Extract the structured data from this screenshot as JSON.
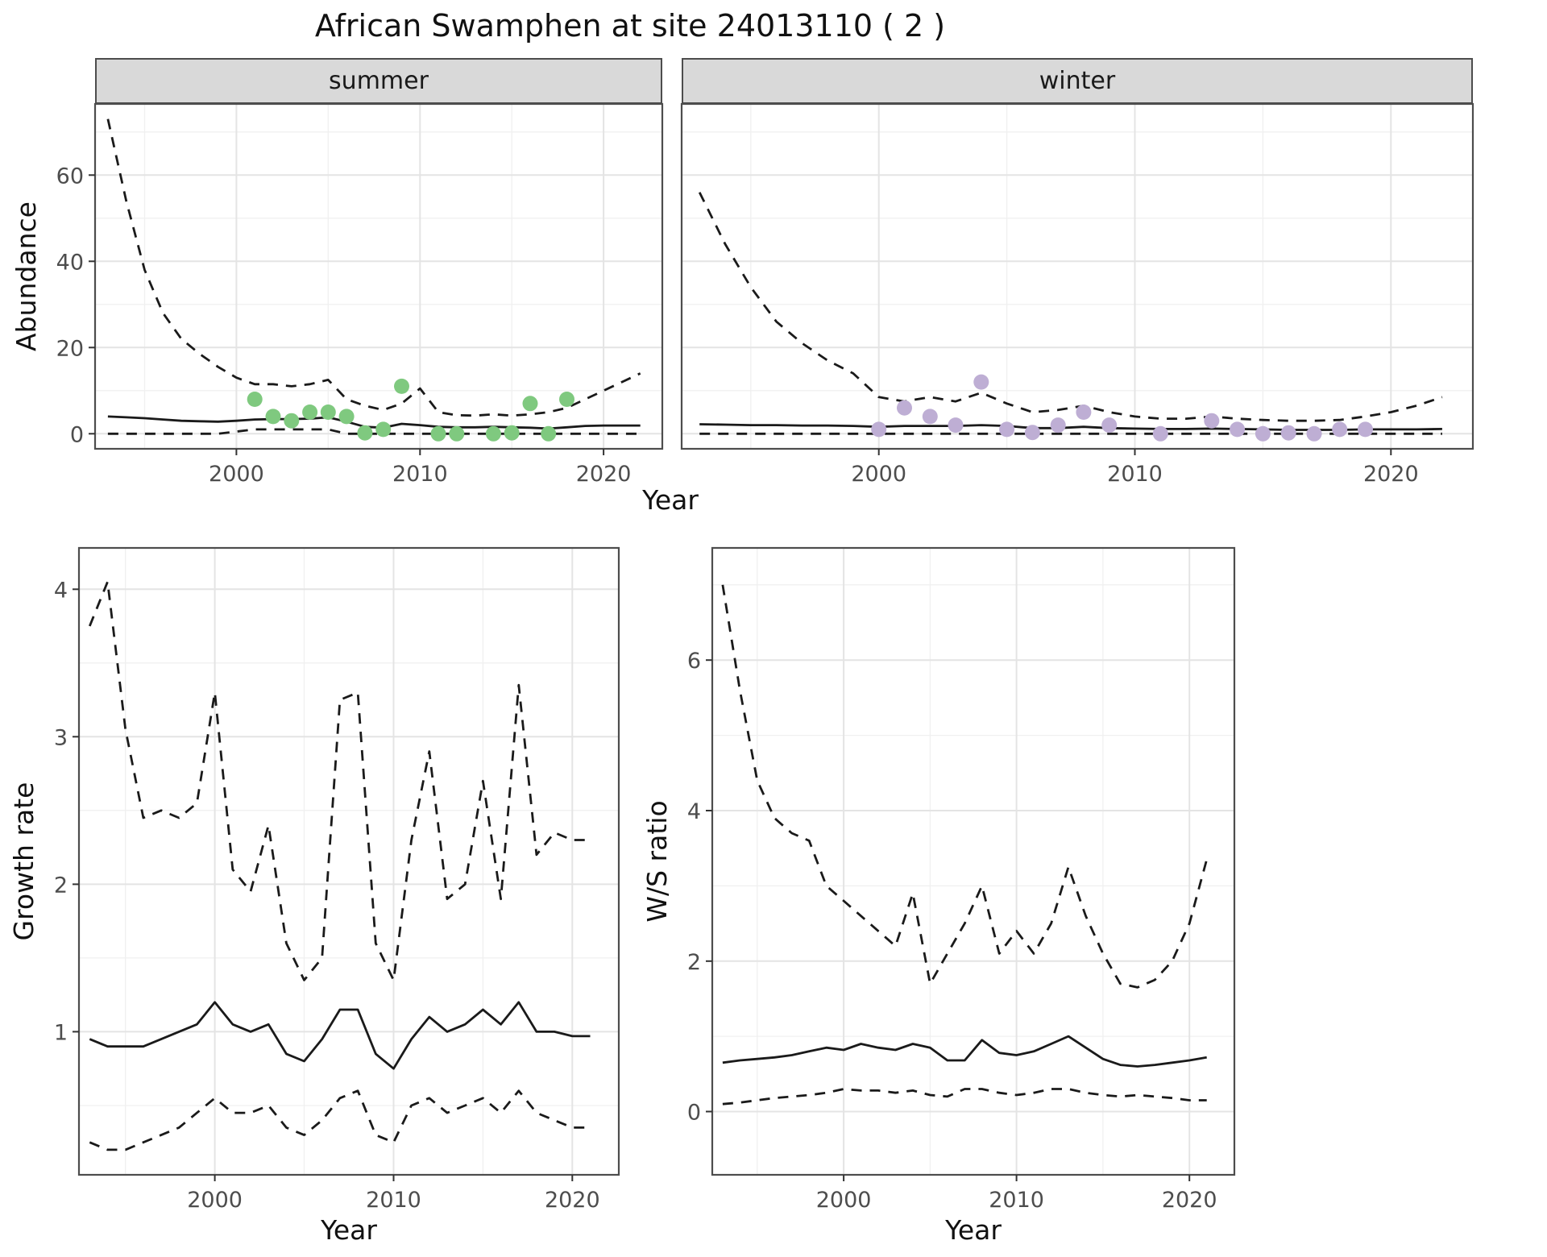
{
  "title": "African Swamphen at site 24013110 ( 2 )",
  "styles": {
    "summer_point_color": "#7FC97F",
    "winter_point_color": "#BEAED4",
    "line_color": "#1a1a1a",
    "strip_background": "#d9d9d9"
  },
  "chart_data": [
    {
      "id": "abundance_summer",
      "type": "line",
      "facet": "summer",
      "xlabel": "Year",
      "ylabel": "Abundance",
      "xlim": [
        1992.3,
        2023.2
      ],
      "ylim": [
        -3.5,
        76.5
      ],
      "xticks": [
        2000,
        2010,
        2020
      ],
      "yticks": [
        0,
        20,
        40,
        60
      ],
      "xticks_minor": [
        1995,
        2005,
        2015
      ],
      "yticks_minor": [
        10,
        30,
        50,
        70
      ],
      "years": [
        1993,
        1994,
        1995,
        1996,
        1997,
        1998,
        1999,
        2000,
        2001,
        2002,
        2003,
        2004,
        2005,
        2006,
        2007,
        2008,
        2009,
        2010,
        2011,
        2012,
        2013,
        2014,
        2015,
        2016,
        2017,
        2018,
        2019,
        2020,
        2021,
        2022
      ],
      "series": [
        {
          "name": "upper_CI",
          "style": "dashed",
          "values": [
            73,
            54,
            38,
            28,
            22,
            18.5,
            15.5,
            13,
            11.5,
            11.5,
            11,
            11.5,
            12.5,
            8,
            6.5,
            5.5,
            7,
            10.5,
            5,
            4.3,
            4.2,
            4.5,
            4.2,
            4.5,
            5,
            6,
            8,
            10,
            12,
            14
          ]
        },
        {
          "name": "median",
          "style": "solid",
          "values": [
            4,
            3.8,
            3.6,
            3.3,
            3,
            2.9,
            2.8,
            3,
            3.3,
            3.4,
            3.4,
            3.5,
            3.8,
            2.8,
            1.6,
            1.4,
            2.3,
            2,
            1.6,
            1.5,
            1.5,
            1.6,
            1.5,
            1.4,
            1.2,
            1.5,
            1.8,
            1.9,
            1.9,
            1.9
          ]
        },
        {
          "name": "lower_CI",
          "style": "dashed",
          "values": [
            0,
            0,
            0,
            0,
            0,
            0,
            0,
            0.5,
            1,
            1,
            1,
            1,
            1,
            0,
            0,
            0,
            0,
            0,
            0,
            0,
            0,
            0,
            0,
            0,
            0,
            0,
            0,
            0,
            0,
            0
          ]
        }
      ],
      "points": {
        "name": "observed_counts",
        "color": "#7FC97F",
        "x": [
          2001,
          2002,
          2003,
          2004,
          2005,
          2006,
          2007,
          2008,
          2009,
          2011,
          2012,
          2014,
          2015,
          2016,
          2017,
          2018
        ],
        "y": [
          8,
          4,
          3,
          5,
          5,
          4,
          0.2,
          1,
          11,
          0,
          0,
          0,
          0.2,
          7,
          0,
          8
        ]
      }
    },
    {
      "id": "abundance_winter",
      "type": "line",
      "facet": "winter",
      "xlabel": "Year",
      "ylabel": "Abundance",
      "xlim": [
        1992.3,
        2023.2
      ],
      "ylim": [
        -3.5,
        76.5
      ],
      "xticks": [
        2000,
        2010,
        2020
      ],
      "yticks": [
        0,
        20,
        40,
        60
      ],
      "xticks_minor": [
        1995,
        2005,
        2015
      ],
      "yticks_minor": [
        10,
        30,
        50,
        70
      ],
      "years": [
        1993,
        1994,
        1995,
        1996,
        1997,
        1998,
        1999,
        2000,
        2001,
        2002,
        2003,
        2004,
        2005,
        2006,
        2007,
        2008,
        2009,
        2010,
        2011,
        2012,
        2013,
        2014,
        2015,
        2016,
        2017,
        2018,
        2019,
        2020,
        2021,
        2022
      ],
      "series": [
        {
          "name": "upper_CI",
          "style": "dashed",
          "values": [
            56,
            44,
            34,
            26,
            21,
            17,
            14,
            8.5,
            7.5,
            8.5,
            7.5,
            9.5,
            7,
            5,
            5.5,
            6.5,
            5,
            4,
            3.5,
            3.5,
            4,
            3.5,
            3.2,
            3,
            3,
            3.2,
            4,
            5,
            6.5,
            8.5
          ]
        },
        {
          "name": "median",
          "style": "solid",
          "values": [
            2.2,
            2.1,
            2,
            2,
            1.9,
            1.9,
            1.8,
            1.6,
            1.8,
            1.8,
            1.8,
            2,
            1.8,
            1.3,
            1.3,
            1.6,
            1.3,
            1.2,
            1.1,
            1.1,
            1.2,
            1.1,
            1,
            0.9,
            0.9,
            0.9,
            1,
            1,
            1,
            1.1
          ]
        },
        {
          "name": "lower_CI",
          "style": "dashed",
          "values": [
            0,
            0,
            0,
            0,
            0,
            0,
            0,
            0,
            0,
            0,
            0,
            0,
            0,
            0,
            0,
            0,
            0,
            0,
            0,
            0,
            0,
            0,
            0,
            0,
            0,
            0,
            0,
            0,
            0,
            0
          ]
        }
      ],
      "points": {
        "name": "observed_counts",
        "color": "#BEAED4",
        "x": [
          2000,
          2001,
          2002,
          2003,
          2004,
          2005,
          2006,
          2007,
          2008,
          2009,
          2011,
          2013,
          2014,
          2015,
          2016,
          2017,
          2018,
          2019
        ],
        "y": [
          1,
          6,
          4,
          2,
          12,
          1,
          0.3,
          2,
          5,
          2,
          0,
          3,
          1,
          0,
          0.2,
          0,
          1,
          1
        ]
      }
    },
    {
      "id": "growth_rate",
      "type": "line",
      "facet": "",
      "xlabel": "Year",
      "ylabel": "Growth rate",
      "xlim": [
        1992.4,
        2022.6
      ],
      "ylim": [
        0.03,
        4.28
      ],
      "xticks": [
        2000,
        2010,
        2020
      ],
      "yticks": [
        1,
        2,
        3,
        4
      ],
      "xticks_minor": [
        1995,
        2005,
        2015
      ],
      "yticks_minor": [
        0.5,
        1.5,
        2.5,
        3.5
      ],
      "years": [
        1993,
        1994,
        1995,
        1996,
        1997,
        1998,
        1999,
        2000,
        2001,
        2002,
        2003,
        2004,
        2005,
        2006,
        2007,
        2008,
        2009,
        2010,
        2011,
        2012,
        2013,
        2014,
        2015,
        2016,
        2017,
        2018,
        2019,
        2020,
        2021
      ],
      "series": [
        {
          "name": "upper_CI",
          "style": "dashed",
          "values": [
            3.75,
            4.05,
            3.05,
            2.45,
            2.5,
            2.45,
            2.55,
            3.3,
            2.1,
            1.95,
            2.4,
            1.6,
            1.35,
            1.5,
            3.25,
            3.3,
            1.6,
            1.35,
            2.3,
            2.9,
            1.9,
            2,
            2.7,
            1.9,
            3.35,
            2.2,
            2.35,
            2.3,
            2.3
          ]
        },
        {
          "name": "median",
          "style": "solid",
          "values": [
            0.95,
            0.9,
            0.9,
            0.9,
            0.95,
            1,
            1.05,
            1.2,
            1.05,
            1,
            1.05,
            0.85,
            0.8,
            0.95,
            1.15,
            1.15,
            0.85,
            0.75,
            0.95,
            1.1,
            1,
            1.05,
            1.15,
            1.05,
            1.2,
            1,
            1,
            0.97,
            0.97
          ]
        },
        {
          "name": "lower_CI",
          "style": "dashed",
          "values": [
            0.25,
            0.2,
            0.2,
            0.25,
            0.3,
            0.35,
            0.45,
            0.55,
            0.45,
            0.45,
            0.5,
            0.35,
            0.3,
            0.4,
            0.55,
            0.6,
            0.3,
            0.25,
            0.5,
            0.55,
            0.45,
            0.5,
            0.55,
            0.45,
            0.6,
            0.45,
            0.4,
            0.35,
            0.35
          ]
        }
      ]
    },
    {
      "id": "ws_ratio",
      "type": "line",
      "facet": "",
      "xlabel": "Year",
      "ylabel": "W/S ratio",
      "xlim": [
        1992.4,
        2022.6
      ],
      "ylim": [
        -0.84,
        7.49
      ],
      "xticks": [
        2000,
        2010,
        2020
      ],
      "yticks": [
        0,
        2,
        4,
        6
      ],
      "xticks_minor": [
        1995,
        2005,
        2015
      ],
      "yticks_minor": [
        1,
        3,
        5,
        7
      ],
      "years": [
        1993,
        1994,
        1995,
        1996,
        1997,
        1998,
        1999,
        2000,
        2001,
        2002,
        2003,
        2004,
        2005,
        2006,
        2007,
        2008,
        2009,
        2010,
        2011,
        2012,
        2013,
        2014,
        2015,
        2016,
        2017,
        2018,
        2019,
        2020,
        2021
      ],
      "series": [
        {
          "name": "upper_CI",
          "style": "dashed",
          "values": [
            7,
            5.6,
            4.4,
            3.9,
            3.7,
            3.6,
            3,
            2.8,
            2.6,
            2.4,
            2.2,
            2.9,
            1.7,
            2.1,
            2.5,
            3,
            2.1,
            2.4,
            2.1,
            2.5,
            3.25,
            2.6,
            2.1,
            1.7,
            1.65,
            1.75,
            2,
            2.5,
            3.35
          ]
        },
        {
          "name": "median",
          "style": "solid",
          "values": [
            0.65,
            0.68,
            0.7,
            0.72,
            0.75,
            0.8,
            0.85,
            0.82,
            0.9,
            0.85,
            0.82,
            0.9,
            0.85,
            0.68,
            0.68,
            0.95,
            0.78,
            0.75,
            0.8,
            0.9,
            1,
            0.85,
            0.7,
            0.62,
            0.6,
            0.62,
            0.65,
            0.68,
            0.72
          ]
        },
        {
          "name": "lower_CI",
          "style": "dashed",
          "values": [
            0.1,
            0.12,
            0.15,
            0.18,
            0.2,
            0.22,
            0.25,
            0.3,
            0.28,
            0.28,
            0.25,
            0.28,
            0.22,
            0.2,
            0.3,
            0.3,
            0.25,
            0.22,
            0.25,
            0.3,
            0.3,
            0.25,
            0.22,
            0.2,
            0.22,
            0.2,
            0.18,
            0.15,
            0.15
          ]
        }
      ]
    }
  ]
}
